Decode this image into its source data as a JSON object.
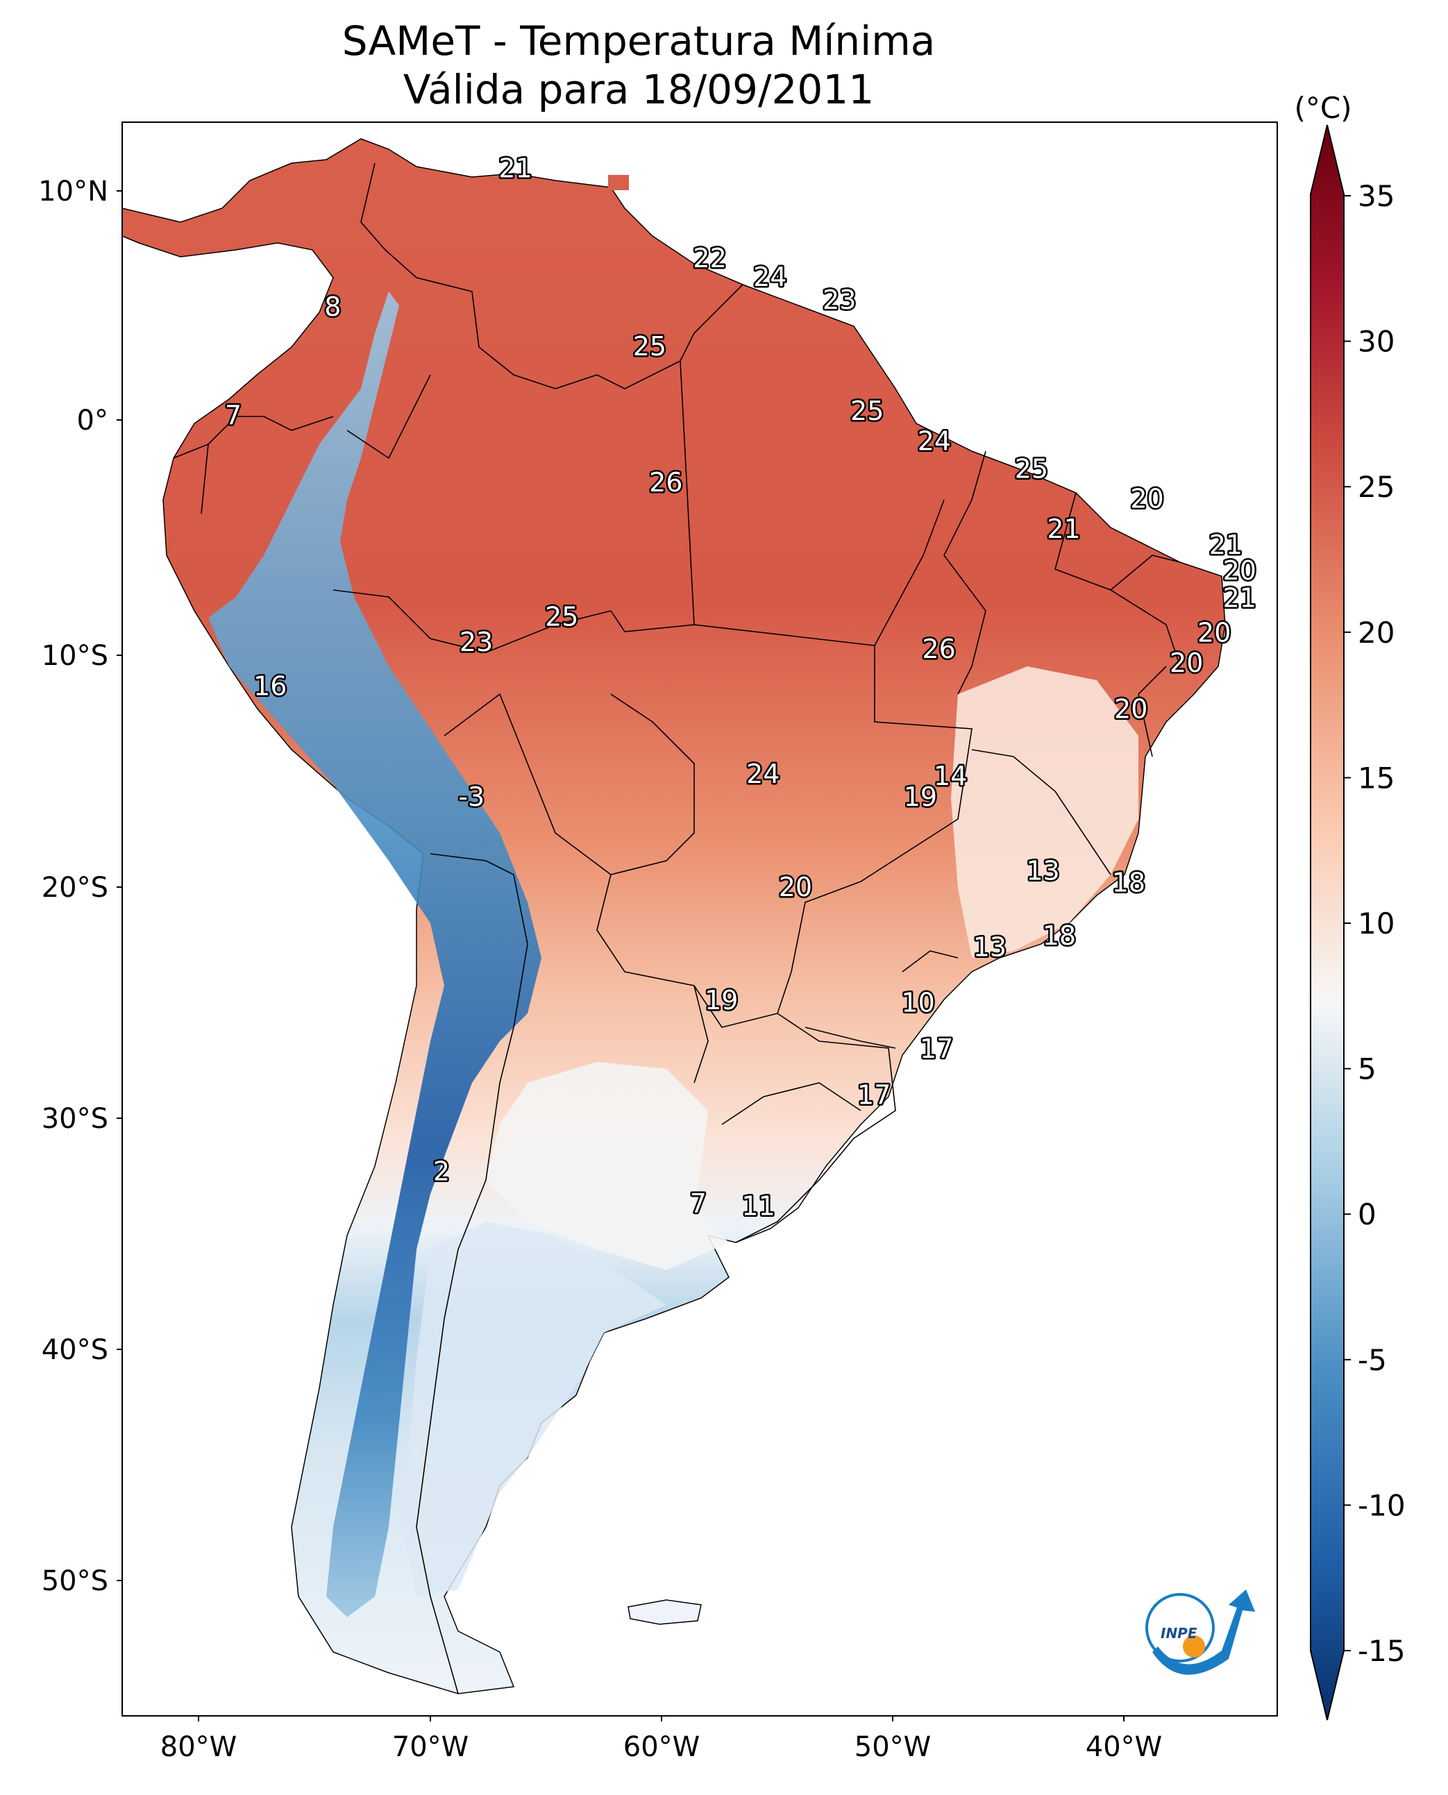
{
  "title": "SAMeT - Temperatura Mínima",
  "subtitle": "Válida para 18/09/2011",
  "colorbar": {
    "unit": "(°C)",
    "ticks": [
      "35",
      "30",
      "25",
      "20",
      "15",
      "10",
      "5",
      "0",
      "-5",
      "-10",
      "-15"
    ],
    "range": [
      -17,
      38
    ],
    "colors": {
      "cold": "#08306b",
      "mid": "#f7f7f7",
      "warm": "#67000d"
    }
  },
  "axes": {
    "lat_ticks": [
      "10°N",
      "0°",
      "10°S",
      "20°S",
      "30°S",
      "40°S",
      "50°S"
    ],
    "lon_ticks": [
      "80°W",
      "70°W",
      "60°W",
      "50°W",
      "40°W"
    ]
  },
  "labels": [
    {
      "lon": -66.3,
      "lat": 10.5,
      "value": "21"
    },
    {
      "lon": -57.9,
      "lat": 6.6,
      "value": "22"
    },
    {
      "lon": -55.3,
      "lat": 5.8,
      "value": "24"
    },
    {
      "lon": -52.3,
      "lat": 4.8,
      "value": "23"
    },
    {
      "lon": -74.2,
      "lat": 4.5,
      "value": "8"
    },
    {
      "lon": -60.5,
      "lat": 2.8,
      "value": "25"
    },
    {
      "lon": -78.5,
      "lat": -0.2,
      "value": "7"
    },
    {
      "lon": -51.1,
      "lat": 0.0,
      "value": "25"
    },
    {
      "lon": -48.2,
      "lat": -1.3,
      "value": "24"
    },
    {
      "lon": -44.0,
      "lat": -2.5,
      "value": "25"
    },
    {
      "lon": -59.8,
      "lat": -3.1,
      "value": "26"
    },
    {
      "lon": -39.0,
      "lat": -3.8,
      "value": "20"
    },
    {
      "lon": -42.6,
      "lat": -5.1,
      "value": "21"
    },
    {
      "lon": -35.6,
      "lat": -5.8,
      "value": "21"
    },
    {
      "lon": -35.0,
      "lat": -6.9,
      "value": "20"
    },
    {
      "lon": -35.0,
      "lat": -8.1,
      "value": "21"
    },
    {
      "lon": -64.3,
      "lat": -8.9,
      "value": "25"
    },
    {
      "lon": -36.1,
      "lat": -9.6,
      "value": "20"
    },
    {
      "lon": -68.0,
      "lat": -10.0,
      "value": "23"
    },
    {
      "lon": -48.0,
      "lat": -10.3,
      "value": "26"
    },
    {
      "lon": -37.3,
      "lat": -10.9,
      "value": "20"
    },
    {
      "lon": -76.9,
      "lat": -11.9,
      "value": "16"
    },
    {
      "lon": -39.7,
      "lat": -12.9,
      "value": "20"
    },
    {
      "lon": -55.6,
      "lat": -15.7,
      "value": "24"
    },
    {
      "lon": -47.5,
      "lat": -15.8,
      "value": "14"
    },
    {
      "lon": -48.8,
      "lat": -16.7,
      "value": "19"
    },
    {
      "lon": -68.2,
      "lat": -16.7,
      "value": "-3"
    },
    {
      "lon": -43.5,
      "lat": -19.9,
      "value": "13"
    },
    {
      "lon": -39.8,
      "lat": -20.4,
      "value": "18"
    },
    {
      "lon": -54.2,
      "lat": -20.6,
      "value": "20"
    },
    {
      "lon": -42.8,
      "lat": -22.7,
      "value": "18"
    },
    {
      "lon": -45.8,
      "lat": -23.2,
      "value": "13"
    },
    {
      "lon": -57.4,
      "lat": -25.5,
      "value": "19"
    },
    {
      "lon": -48.9,
      "lat": -25.6,
      "value": "10"
    },
    {
      "lon": -48.1,
      "lat": -27.6,
      "value": "17"
    },
    {
      "lon": -50.8,
      "lat": -29.6,
      "value": "17"
    },
    {
      "lon": -69.5,
      "lat": -32.9,
      "value": "2"
    },
    {
      "lon": -58.4,
      "lat": -34.3,
      "value": "7"
    },
    {
      "lon": -55.8,
      "lat": -34.4,
      "value": "11"
    }
  ],
  "logo_text": "INPE"
}
